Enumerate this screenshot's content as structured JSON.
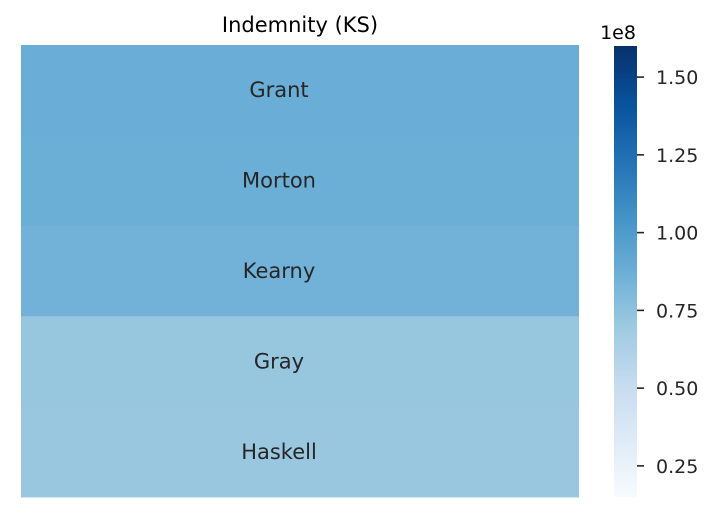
{
  "chart_data": {
    "type": "heatmap",
    "title": "Indemnity (KS)",
    "xlabel": "",
    "ylabel": "",
    "categories": [
      "Grant",
      "Morton",
      "Kearny",
      "Gray",
      "Haskell"
    ],
    "values": [
      88000000,
      87000000,
      85000000,
      72000000,
      71000000
    ],
    "colorbar": {
      "min": 15000000,
      "max": 160000000,
      "ticks": [
        0.25,
        0.5,
        0.75,
        1.0,
        1.25,
        1.5
      ],
      "tick_labels": [
        "0.25",
        "0.50",
        "0.75",
        "1.00",
        "1.25",
        "1.50"
      ],
      "scale_label": "1e8",
      "scale_factor": 100000000
    },
    "colormap": "Blues",
    "colormap_stops": [
      "#f7fbff",
      "#deebf7",
      "#c6dbef",
      "#9ecae1",
      "#6baed6",
      "#4292c6",
      "#2171b5",
      "#08519c",
      "#08306b"
    ],
    "cell_text_color": "#262626",
    "grid": false,
    "legend": "none"
  }
}
